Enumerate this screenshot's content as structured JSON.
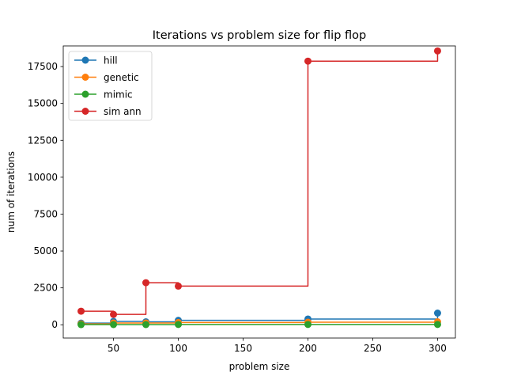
{
  "chart_data": {
    "type": "line",
    "title": "Iterations vs problem size for flip flop",
    "xlabel": "problem size",
    "ylabel": "num of iterations",
    "x": [
      25,
      50,
      75,
      100,
      200,
      300
    ],
    "xlim": [
      11.25,
      313.75
    ],
    "ylim": [
      -900,
      18900
    ],
    "xticks": [
      50,
      100,
      150,
      200,
      250,
      300
    ],
    "yticks": [
      0,
      2500,
      5000,
      7500,
      10000,
      12500,
      15000,
      17500
    ],
    "step": "post",
    "markers": "circle",
    "grid": false,
    "legend_position": "top-left",
    "series": [
      {
        "name": "hill",
        "color": "#1f77b4",
        "values": [
          110,
          230,
          200,
          300,
          390,
          790
        ]
      },
      {
        "name": "genetic",
        "color": "#ff7f0e",
        "values": [
          60,
          120,
          120,
          150,
          170,
          200
        ]
      },
      {
        "name": "mimic",
        "color": "#2ca02c",
        "values": [
          10,
          15,
          15,
          20,
          20,
          20
        ]
      },
      {
        "name": "sim ann",
        "color": "#d62728",
        "values": [
          920,
          700,
          2850,
          2620,
          17870,
          18560
        ]
      }
    ]
  }
}
